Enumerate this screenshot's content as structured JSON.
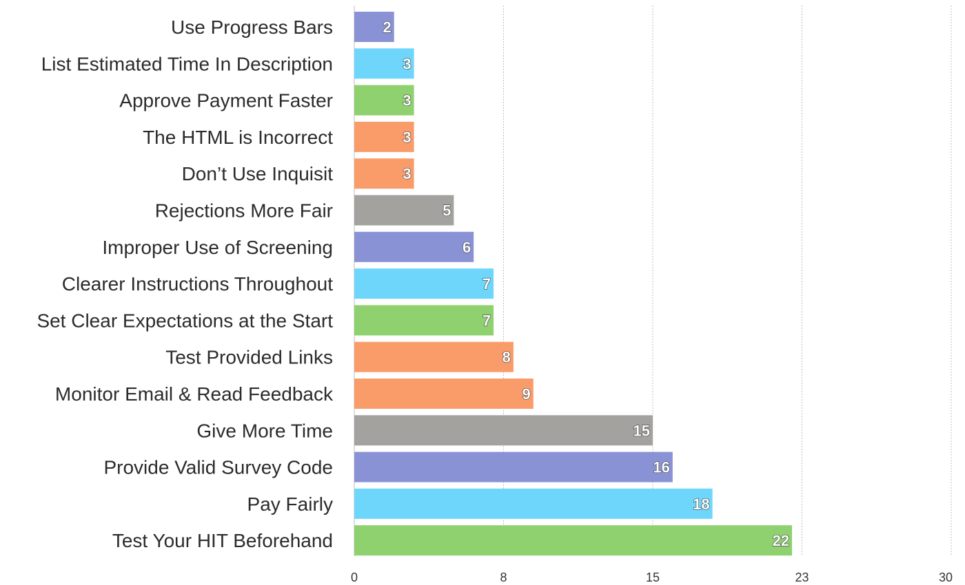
{
  "chart_data": {
    "type": "bar",
    "orientation": "horizontal",
    "categories": [
      "Use Progress Bars",
      "List Estimated Time In Description",
      "Approve Payment Faster",
      "The HTML is Incorrect",
      "Don’t Use Inquisit",
      "Rejections More Fair",
      "Improper Use of Screening",
      "Clearer Instructions Throughout",
      "Set Clear Expectations at the Start",
      "Test Provided Links",
      "Monitor Email & Read Feedback",
      "Give More Time",
      "Provide Valid Survey Code",
      "Pay Fairly",
      "Test Your HIT Beforehand"
    ],
    "values": [
      2,
      3,
      3,
      3,
      3,
      5,
      6,
      7,
      7,
      8,
      9,
      15,
      16,
      18,
      22
    ],
    "bar_colors": [
      "#8a92d6",
      "#6fd6fb",
      "#8fd06f",
      "#fa9c6a",
      "#fa9c6a",
      "#a3a29f",
      "#8a92d6",
      "#6fd6fb",
      "#8fd06f",
      "#fa9c6a",
      "#fa9c6a",
      "#a3a29f",
      "#8a92d6",
      "#6fd6fb",
      "#8fd06f"
    ],
    "xlim": [
      0,
      30
    ],
    "xticks": [
      0,
      7.5,
      15,
      22.5,
      30
    ],
    "xtick_labels": [
      "0",
      "8",
      "15",
      "23",
      "30"
    ],
    "grid": true,
    "title": "",
    "xlabel": "",
    "ylabel": ""
  }
}
